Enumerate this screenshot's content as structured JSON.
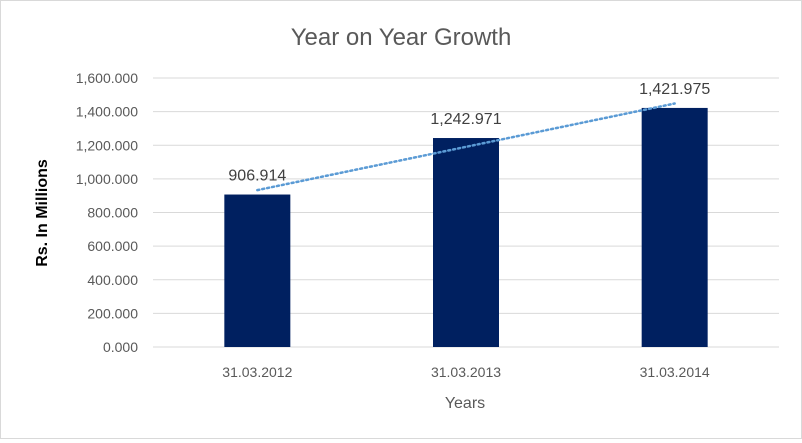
{
  "chart_data": {
    "type": "bar",
    "title": "Year on Year Growth",
    "xlabel": "Years",
    "ylabel": "Rs. In Millions",
    "categories": [
      "31.03.2012",
      "31.03.2013",
      "31.03.2014"
    ],
    "values": [
      906.914,
      1242.971,
      1421.975
    ],
    "data_labels": [
      "906.914",
      "1,242.971",
      "1,421.975"
    ],
    "ylim": [
      0,
      1600
    ],
    "yticks": [
      0,
      200,
      400,
      600,
      800,
      1000,
      1200,
      1400,
      1600
    ],
    "ytick_labels": [
      "0.000",
      "200.000",
      "400.000",
      "600.000",
      "800.000",
      "1,000.000",
      "1,200.000",
      "1,400.000",
      "1,600.000"
    ],
    "grid": true,
    "trendline": "linear",
    "bar_color": "#002060",
    "trendline_color": "#5B9BD5",
    "grid_color": "#d9d9d9"
  }
}
